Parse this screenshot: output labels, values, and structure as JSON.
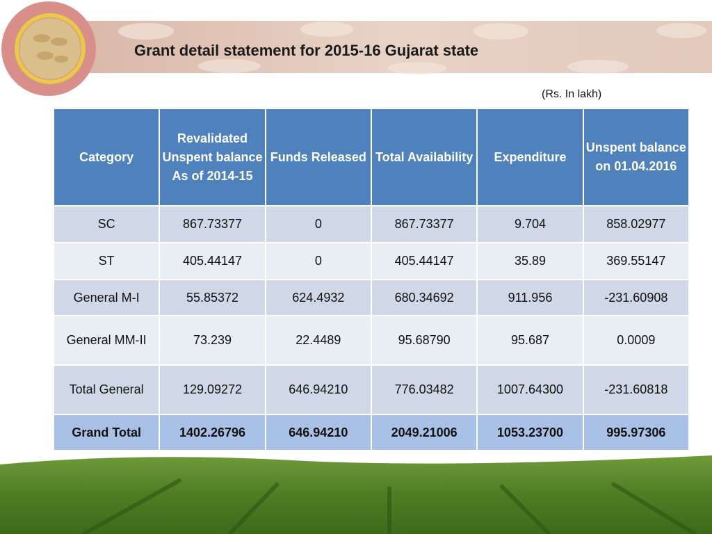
{
  "header": {
    "title": "Grant detail statement for 2015-16 Gujarat state",
    "unit_note": "(Rs. In lakh)"
  },
  "table": {
    "columns": [
      "Category",
      "Revalidated Unspent balance As of 2014-15",
      "Funds Released",
      "Total Availability",
      "Expenditure",
      "Unspent balance on 01.04.2016"
    ],
    "rows": [
      [
        "SC",
        "867.73377",
        "0",
        "867.73377",
        "9.704",
        "858.02977"
      ],
      [
        "ST",
        "405.44147",
        "0",
        "405.44147",
        "35.89",
        "369.55147"
      ],
      [
        "General M-I",
        "55.85372",
        "624.4932",
        "680.34692",
        "911.956",
        "-231.60908"
      ],
      [
        "General MM-II",
        "73.239",
        "22.4489",
        "95.68790",
        "95.687",
        "0.0009"
      ],
      [
        "Total General",
        "129.09272",
        "646.94210",
        "776.03482",
        "1007.64300",
        "-231.60818"
      ],
      [
        "Grand Total",
        "1402.26796",
        "646.94210",
        "2049.21006",
        "1053.23700",
        "995.97306"
      ]
    ]
  }
}
